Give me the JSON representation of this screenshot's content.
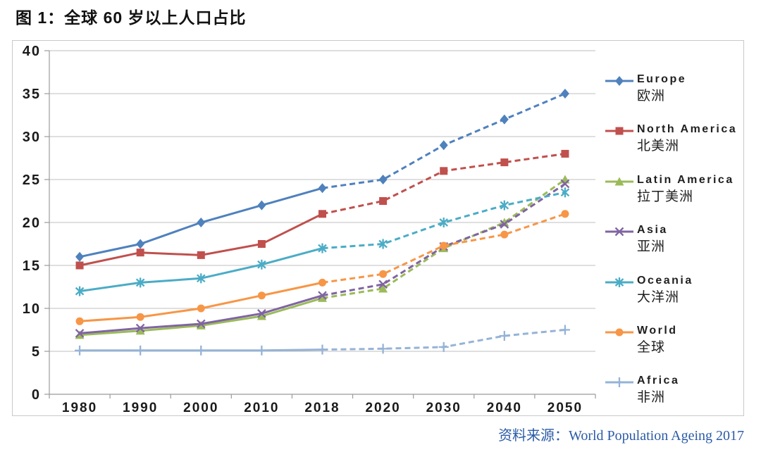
{
  "page": {
    "title": "图 1：全球 60 岁以上人口占比",
    "source": "资料来源：World Population Ageing 2017"
  },
  "chart_data": {
    "type": "line",
    "title": "图 1：全球 60 岁以上人口占比",
    "xlabel": "",
    "ylabel": "",
    "ylim": [
      0,
      40
    ],
    "y_ticks": [
      0,
      5,
      10,
      15,
      20,
      25,
      30,
      35,
      40
    ],
    "grid": true,
    "legend_position": "right",
    "projection_note": "dashed after 2018 (projections)",
    "categories": [
      "1980",
      "1990",
      "2000",
      "2010",
      "2018",
      "2020",
      "2030",
      "2040",
      "2050"
    ],
    "dash_from_index": 4,
    "series": [
      {
        "name_en": "Europe",
        "name_zh": "欧洲",
        "color": "#4F81BD",
        "marker": "diamond",
        "values": [
          16.0,
          17.5,
          20.0,
          22.0,
          24.0,
          25.0,
          29.0,
          32.0,
          35.0
        ]
      },
      {
        "name_en": "North America",
        "name_zh": "北美洲",
        "color": "#C0504D",
        "marker": "square",
        "values": [
          15.0,
          16.5,
          16.2,
          17.5,
          21.0,
          22.5,
          26.0,
          27.0,
          28.0
        ]
      },
      {
        "name_en": "Latin America",
        "name_zh": "拉丁美洲",
        "color": "#9BBB59",
        "marker": "triangle",
        "values": [
          6.9,
          7.4,
          8.0,
          9.1,
          11.2,
          12.3,
          17.0,
          20.0,
          25.0
        ]
      },
      {
        "name_en": "Asia",
        "name_zh": "亚洲",
        "color": "#8064A2",
        "marker": "x",
        "values": [
          7.1,
          7.7,
          8.2,
          9.4,
          11.5,
          12.8,
          17.2,
          19.8,
          24.5
        ]
      },
      {
        "name_en": "Oceania",
        "name_zh": "大洋洲",
        "color": "#4BACC6",
        "marker": "asterisk",
        "values": [
          12.0,
          13.0,
          13.5,
          15.1,
          17.0,
          17.5,
          20.0,
          22.0,
          23.5
        ]
      },
      {
        "name_en": "World",
        "name_zh": "全球",
        "color": "#F79646",
        "marker": "circle",
        "values": [
          8.5,
          9.0,
          10.0,
          11.5,
          13.0,
          14.0,
          17.3,
          18.6,
          21.0
        ]
      },
      {
        "name_en": "Africa",
        "name_zh": "非洲",
        "color": "#95B3D7",
        "marker": "plus",
        "values": [
          5.1,
          5.1,
          5.1,
          5.1,
          5.2,
          5.3,
          5.5,
          6.8,
          7.5
        ]
      }
    ]
  }
}
